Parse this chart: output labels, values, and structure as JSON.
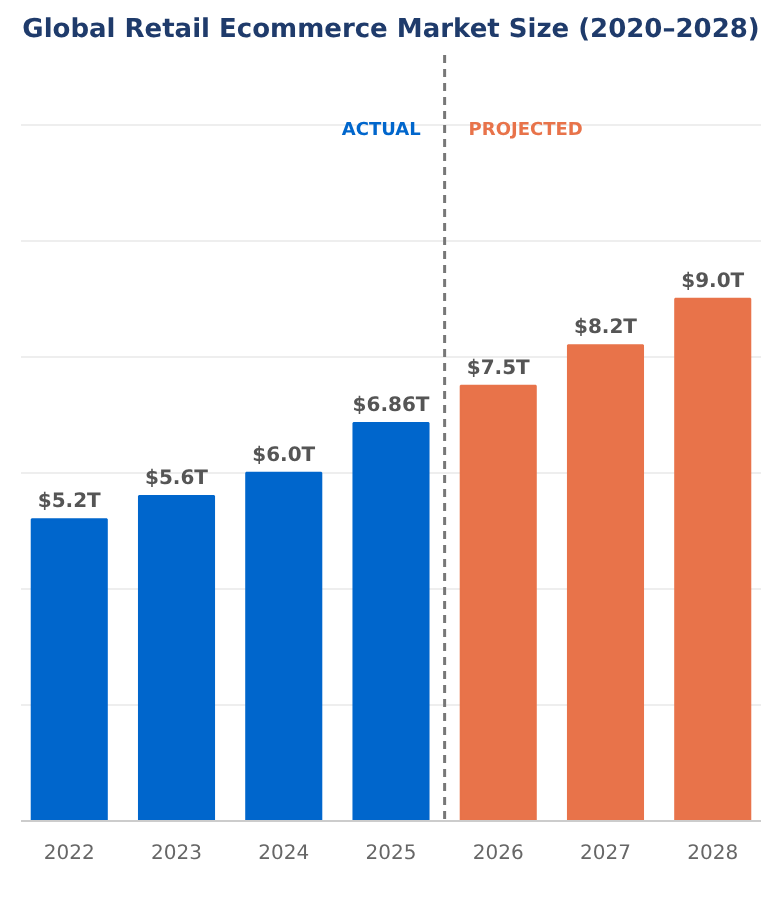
{
  "chart_data": {
    "type": "bar",
    "title": "Global Retail Ecommerce Market Size (2020–2028)",
    "x": [
      2022,
      2023,
      2024,
      2025,
      2026,
      2027,
      2028
    ],
    "values": [
      5.2,
      5.6,
      6.0,
      6.86,
      7.5,
      8.2,
      9.0
    ],
    "colors": [
      "#0066cc",
      "#0066cc",
      "#0066cc",
      "#0066cc",
      "#e8734a",
      "#e8734a",
      "#e8734a"
    ],
    "value_labels": [
      "$5.2T",
      "$5.6T",
      "$6.0T",
      "$6.86T",
      "$7.5T",
      "$8.2T",
      "$9.0T"
    ],
    "xlim": [
      2021.55,
      2028.45
    ],
    "xticks": [
      2022,
      2023,
      2024,
      2025,
      2026,
      2027,
      2028
    ],
    "ylim": [
      0,
      13.2
    ],
    "yticks": [
      0,
      2,
      4,
      6,
      8,
      10,
      12
    ],
    "ref_lines": [
      {
        "axis": "x",
        "value": 2025.5,
        "color": "#777777",
        "line_style": "dashed"
      }
    ],
    "annotations": [
      "ACTUAL",
      "PROJECTED"
    ],
    "grid": "y",
    "tick_labels": "x"
  }
}
